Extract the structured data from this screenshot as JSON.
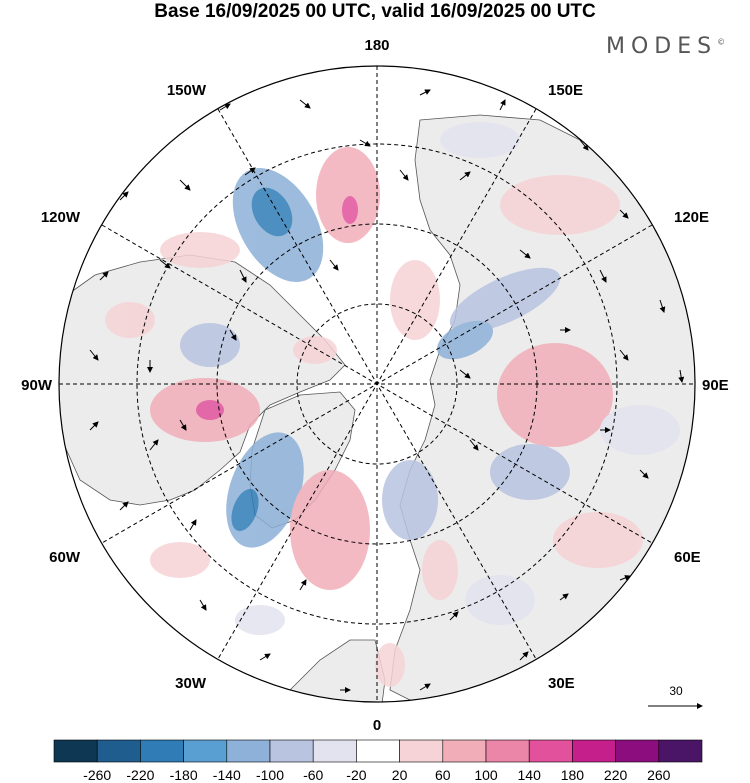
{
  "header": {
    "title": "Base 16/09/2025 00 UTC, valid 16/09/2025 00 UTC",
    "brand": "MODES",
    "brand_mark": "©"
  },
  "map": {
    "projection": "polar-stereographic-north",
    "longitude_labels": {
      "top": "180",
      "bottom": "0",
      "left": "90W",
      "right": "90E",
      "upper_left": "150W",
      "upper_right": "150E",
      "mid_upper_left": "120W",
      "mid_upper_right": "120E",
      "mid_lower_left": "60W",
      "mid_lower_right": "60E",
      "lower_left": "30W",
      "lower_right": "30E"
    },
    "reference_vector": {
      "value": "30"
    },
    "colors": {
      "land": "#ececec",
      "ocean": "#ffffff",
      "coast": "#444444"
    }
  },
  "colorbar": {
    "ticks": [
      "-260",
      "-220",
      "-180",
      "-140",
      "-100",
      "-60",
      "-20",
      "20",
      "60",
      "100",
      "140",
      "180",
      "220",
      "260"
    ],
    "colors": [
      "#0d3752",
      "#1f5d8f",
      "#2f7cb7",
      "#5a9fd1",
      "#8db1d8",
      "#b9c4e1",
      "#e3e3ef",
      "#ffffff",
      "#f6d3d6",
      "#f1aeb9",
      "#ec86a8",
      "#e2529c",
      "#c41f8a",
      "#8c0d7e",
      "#4a1467"
    ]
  }
}
